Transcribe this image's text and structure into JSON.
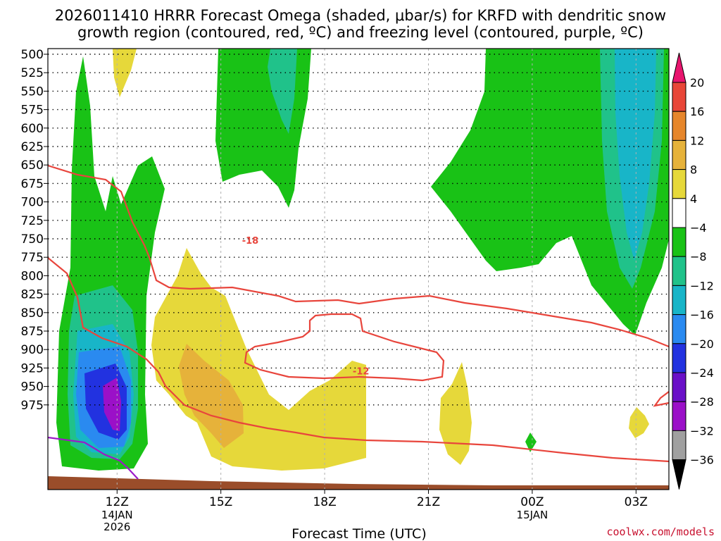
{
  "title_line1": "2026011410 HRRR Forecast Omega (shaded, μbar/s) for KRFD with dendritic snow",
  "title_line2": "growth region (contoured, red, ºC) and freezing level (contoured, purple, ºC)",
  "credit": "coolwx.com/models",
  "chart_data": {
    "type": "time-height contour",
    "xlabel": "Forecast Time (UTC)",
    "x_ticks": [
      {
        "label": "12Z",
        "sub": [
          "14JAN",
          "2026"
        ],
        "hour": 12
      },
      {
        "label": "15Z",
        "sub": [],
        "hour": 15
      },
      {
        "label": "18Z",
        "sub": [],
        "hour": 18
      },
      {
        "label": "21Z",
        "sub": [],
        "hour": 21
      },
      {
        "label": "00Z",
        "sub": [
          "15JAN"
        ],
        "hour": 24
      },
      {
        "label": "03Z",
        "sub": [],
        "hour": 27
      }
    ],
    "xlim": [
      10,
      27.95
    ],
    "y_pressure_levels": [
      "500",
      "525",
      "550",
      "575",
      "600",
      "625",
      "650",
      "675",
      "700",
      "725",
      "750",
      "775",
      "800",
      "825",
      "850",
      "875",
      "900",
      "925",
      "950",
      "975"
    ],
    "colorbar": {
      "labels": [
        "20",
        "16",
        "12",
        "8",
        "4",
        "−4",
        "−8",
        "−12",
        "−16",
        "−20",
        "−24",
        "−28",
        "−32",
        "−36"
      ],
      "colors": [
        "#e8156e",
        "#e84638",
        "#e6862b",
        "#e6b23a",
        "#e6d83a",
        "#ffffff",
        "#19c216",
        "#20c28a",
        "#18b5c8",
        "#2a8af0",
        "#2232e0",
        "#6a10c8",
        "#9b10c8",
        "#a0a0a0",
        "#000000"
      ]
    },
    "contour_labels": [
      {
        "text": "-18",
        "series": "dendritic snow growth region",
        "hour": 15.85,
        "pressure": 752
      },
      {
        "text": "-12",
        "series": "dendritic snow growth region",
        "hour": 19.05,
        "pressure": 929
      }
    ],
    "series": [
      {
        "name": "Omega shaded",
        "units": "μbar/s"
      },
      {
        "name": "dendritic snow growth region",
        "color": "#e8453c",
        "units": "ºC"
      },
      {
        "name": "freezing level",
        "color": "#9b19c8",
        "units": "ºC"
      }
    ]
  }
}
